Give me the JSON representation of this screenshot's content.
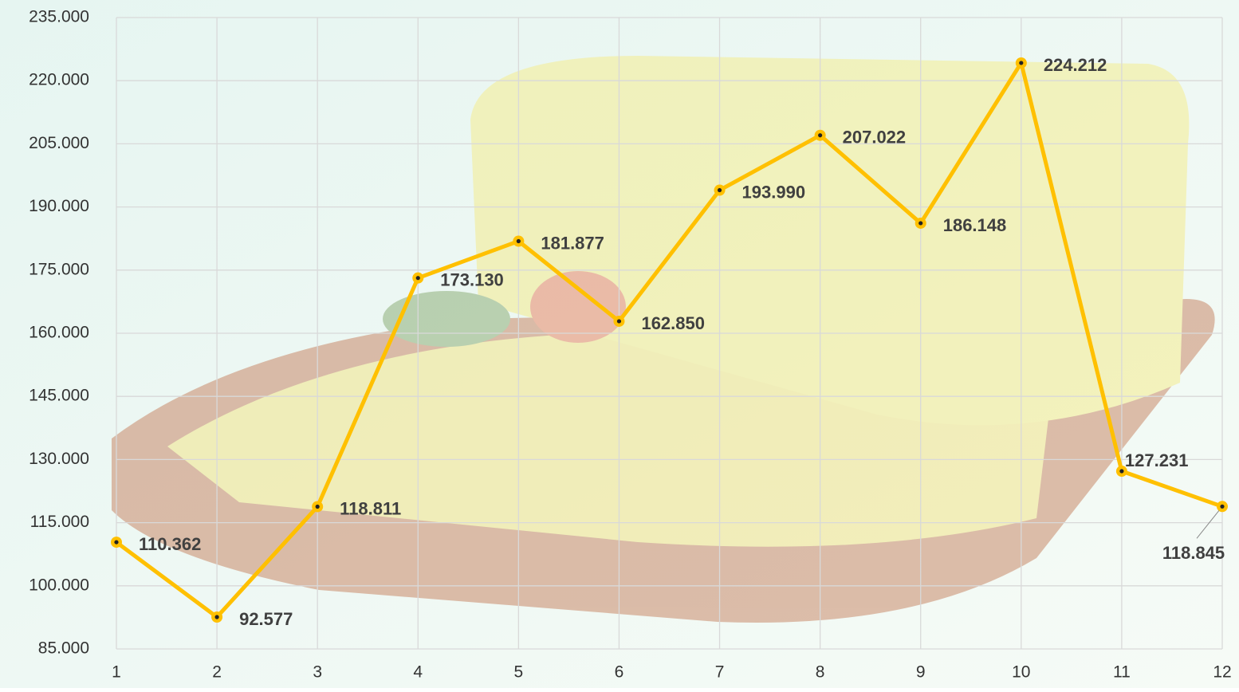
{
  "chart_data": {
    "type": "line",
    "x": [
      1,
      2,
      3,
      4,
      5,
      6,
      7,
      8,
      9,
      10,
      11,
      12
    ],
    "values": [
      110362,
      92577,
      118811,
      173130,
      181877,
      162850,
      193990,
      207022,
      186148,
      224212,
      127231,
      118845
    ],
    "value_labels": [
      "110.362",
      "92.577",
      "118.811",
      "173.130",
      "181.877",
      "162.850",
      "193.990",
      "207.022",
      "186.148",
      "224.212",
      "127.231",
      "118.845"
    ],
    "color": "#ffc000",
    "xlim": [
      1,
      12
    ],
    "xticks": [
      1,
      2,
      3,
      4,
      5,
      6,
      7,
      8,
      9,
      10,
      11,
      12
    ],
    "ylim": [
      85000,
      235000
    ],
    "yticks": [
      {
        "value": 85000,
        "label": "85.000"
      },
      {
        "value": 100000,
        "label": "100.000"
      },
      {
        "value": 115000,
        "label": "115.000"
      },
      {
        "value": 130000,
        "label": "130.000"
      },
      {
        "value": 145000,
        "label": "145.000"
      },
      {
        "value": 160000,
        "label": "160.000"
      },
      {
        "value": 175000,
        "label": "175.000"
      },
      {
        "value": 190000,
        "label": "190.000"
      },
      {
        "value": 205000,
        "label": "205.000"
      },
      {
        "value": 220000,
        "label": "220.000"
      },
      {
        "value": 235000,
        "label": "235.000"
      }
    ],
    "grid": true
  }
}
